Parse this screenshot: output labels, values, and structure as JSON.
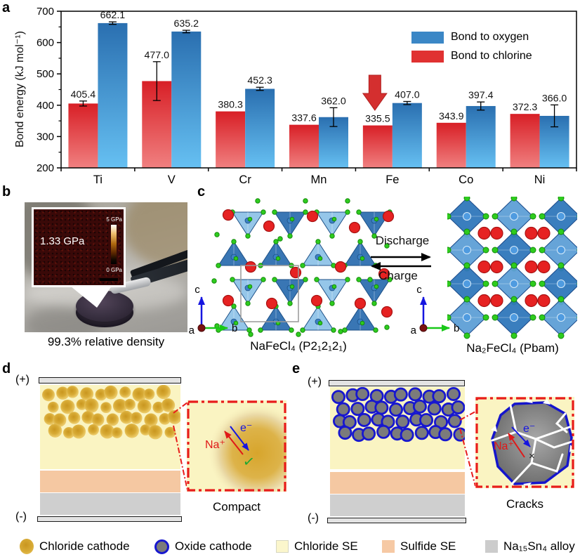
{
  "panel_labels": {
    "a": "a",
    "b": "b",
    "c": "c",
    "d": "d",
    "e": "e"
  },
  "chart_data": {
    "type": "bar",
    "title": "",
    "xlabel": "",
    "ylabel": "Bond energy (kJ mol⁻¹)",
    "ylim": [
      200,
      700
    ],
    "ytick_step": 100,
    "grid": false,
    "legend_position": "top-right-inside",
    "categories": [
      "Ti",
      "V",
      "Cr",
      "Mn",
      "Fe",
      "Co",
      "Ni"
    ],
    "series": [
      {
        "name": "Bond to chlorine",
        "color": "#e03131",
        "values": [
          405.4,
          477.0,
          380.3,
          337.6,
          335.5,
          343.9,
          372.3
        ],
        "errors": [
          8,
          62,
          0,
          0,
          0,
          0,
          0
        ]
      },
      {
        "name": "Bond to oxygen",
        "color": "#3b87c6",
        "values": [
          662.1,
          635.2,
          452.3,
          362.0,
          407.0,
          397.4,
          366.0
        ],
        "errors": [
          4,
          4,
          5,
          30,
          5,
          13,
          35
        ]
      }
    ],
    "legend": [
      {
        "label": "Bond to oxygen",
        "color": "#3b87c6"
      },
      {
        "label": "Bond to chlorine",
        "color": "#e03131"
      }
    ],
    "annotation": {
      "type": "down-arrow",
      "category": "Fe",
      "series": "Bond to chlorine",
      "color": "#d42f2f"
    }
  },
  "panel_b": {
    "pressure_label": "1.33 GPa",
    "colorbar_max": "5 GPa",
    "colorbar_min": "0 GPa",
    "caption": "99.3% relative density"
  },
  "panel_c": {
    "discharge": "Discharge",
    "charge": "Charge",
    "left_caption": "NaFeCl₄ (P2₁2₁2₁)",
    "right_caption": "Na₂FeCl₄ (Pbam)",
    "axes": {
      "a": "a",
      "b": "b",
      "c": "c"
    }
  },
  "panel_d": {
    "positive": "(+)",
    "negative": "(-)",
    "na_ion": "Na⁺",
    "electron": "e⁻",
    "check": "✓",
    "caption": "Compact"
  },
  "panel_e": {
    "positive": "(+)",
    "negative": "(-)",
    "na_ion": "Na⁺",
    "electron": "e⁻",
    "cross": "×",
    "caption": "Cracks"
  },
  "bottom_legend": {
    "items": [
      {
        "label": "Chloride cathode"
      },
      {
        "label": "Oxide cathode"
      },
      {
        "label": "Chloride SE"
      },
      {
        "label": "Sulfide SE"
      },
      {
        "label": "Na₁₅Sn₄ alloy"
      }
    ]
  },
  "colors": {
    "bar_blue_top": "#2a6fb0",
    "bar_blue_bottom": "#66c0f2",
    "bar_red_top": "#d81f26",
    "bar_red_bottom": "#f08080",
    "chloride_se": "#faf4c2",
    "sulfide_se": "#f5c8a2",
    "alloy": "#cfcfcf",
    "oxide_ring_blue": "#1717cf",
    "annotation_red": "#d42f2f"
  }
}
